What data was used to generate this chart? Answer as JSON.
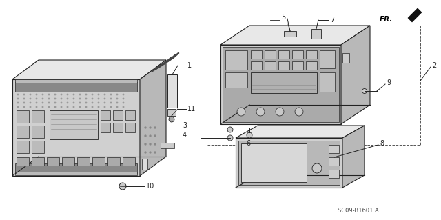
{
  "bg_color": "#ffffff",
  "lc": "#222222",
  "lc_light": "#555555",
  "fill_front": "#d0d0d0",
  "fill_top": "#e8e8e8",
  "fill_right": "#b8b8b8",
  "fill_panel": "#c0c0c0",
  "fill_display": "#a8a8a8",
  "fill_btn": "#cccccc",
  "part_code": "SC09-B1601 A",
  "fr_label": "FR."
}
